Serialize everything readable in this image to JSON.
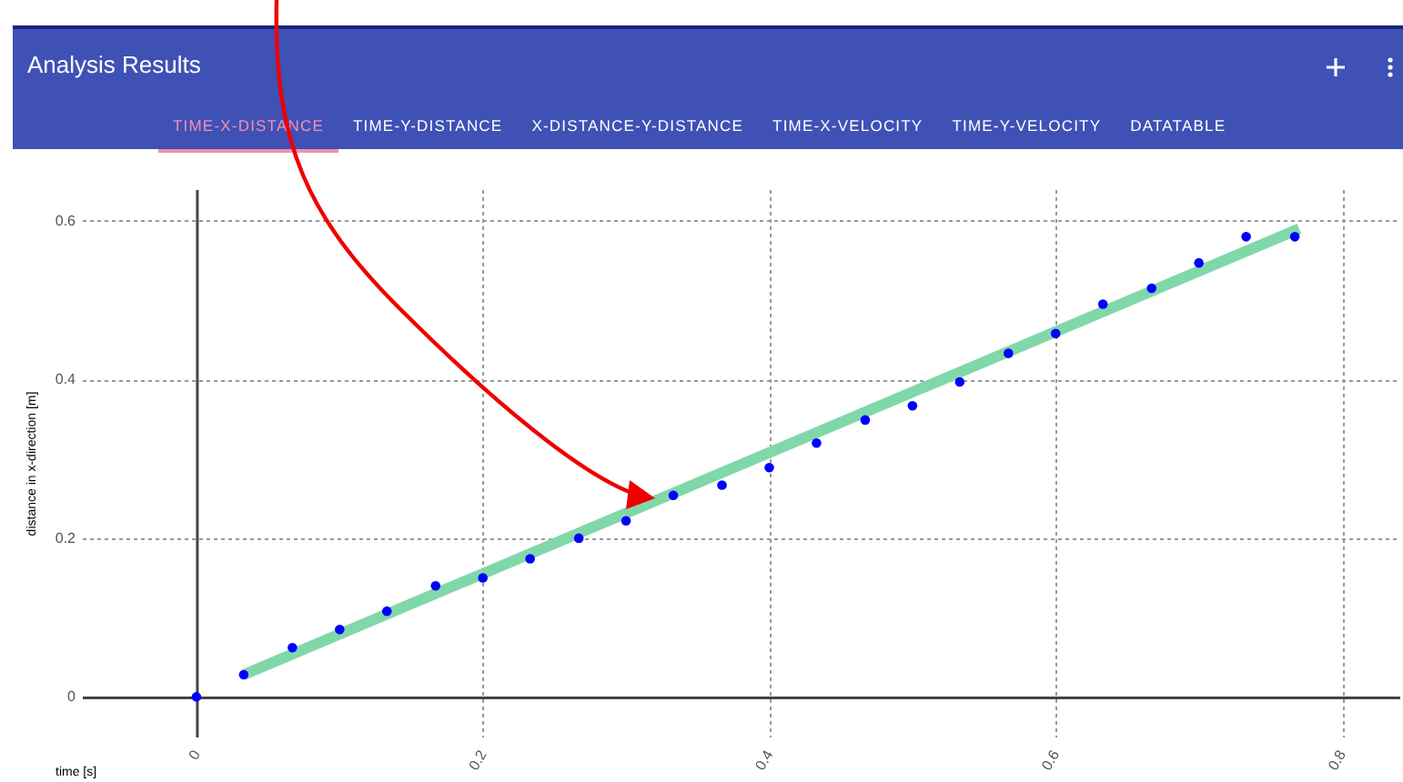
{
  "chart_data": {
    "type": "scatter",
    "title": "Analysis Results",
    "annotations": [
      "TIME-X-DISTANCE",
      "TIME-Y-DISTANCE",
      "X-DISTANCE-Y-DISTANCE",
      "TIME-X-VELOCITY",
      "TIME-Y-VELOCITY",
      "DATATABLE"
    ],
    "xlabel": "time [s]",
    "ylabel": "distance in x-direction [m]",
    "xlim": [
      -0.08,
      0.84
    ],
    "ylim": [
      -0.05,
      0.64
    ],
    "xticks": [
      0,
      0.2,
      0.4,
      0.6,
      0.8
    ],
    "yticks": [
      0,
      0.2,
      0.4,
      0.6
    ],
    "grid": true,
    "marker": "circle",
    "series": [
      {
        "color": "#0000ff",
        "x": [
          0,
          0.033,
          0.067,
          0.1,
          0.133,
          0.167,
          0.2,
          0.233,
          0.267,
          0.3,
          0.333,
          0.367,
          0.4,
          0.433,
          0.467,
          0.5,
          0.533,
          0.567,
          0.6,
          0.633,
          0.667,
          0.7,
          0.733,
          0.767
        ],
        "values": [
          0,
          0.028,
          0.062,
          0.085,
          0.108,
          0.14,
          0.15,
          0.174,
          0.2,
          0.222,
          0.254,
          0.267,
          0.289,
          0.32,
          0.349,
          0.367,
          0.397,
          0.433,
          0.458,
          0.495,
          0.515,
          0.547,
          0.58,
          0.58
        ]
      },
      {
        "type": "line",
        "marker": "none",
        "color": "#80d8a8",
        "x": [
          0.033,
          0.77
        ],
        "values": [
          0.028,
          0.59
        ]
      }
    ]
  }
}
